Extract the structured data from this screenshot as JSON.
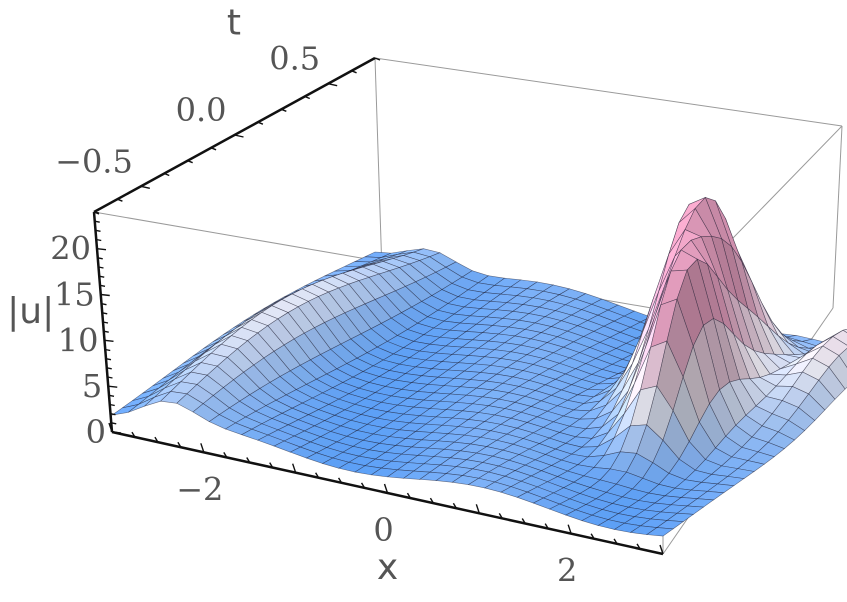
{
  "chart_data": {
    "type": "surface",
    "title": "",
    "xlabel": "x",
    "ylabel": "t",
    "zlabel": "|u|",
    "xlim": [
      -3,
      3
    ],
    "ylim": [
      -0.75,
      0.75
    ],
    "zlim": [
      0,
      24
    ],
    "x_ticks": [
      "−2",
      "0",
      "2"
    ],
    "y_ticks": [
      "−0.5",
      "0.0",
      "0.5"
    ],
    "z_ticks": [
      "0",
      "5",
      "10",
      "15",
      "20"
    ],
    "colors": {
      "low": "#3a8df5",
      "mid": "#f4f2fb",
      "high": "#f0a6c8",
      "peak_left": "#c2185b"
    },
    "features": [
      {
        "feature": "tall peak",
        "x": 1.5,
        "t": 0.25,
        "z": 22
      },
      {
        "feature": "second peak",
        "x": 1.9,
        "t": -0.05,
        "z": 17
      },
      {
        "feature": "left ridge",
        "x": -2.4,
        "t": 0.0,
        "z": 5
      },
      {
        "feature": "back-right ridge",
        "x": 2.7,
        "t": 0.45,
        "z": 7
      }
    ]
  }
}
